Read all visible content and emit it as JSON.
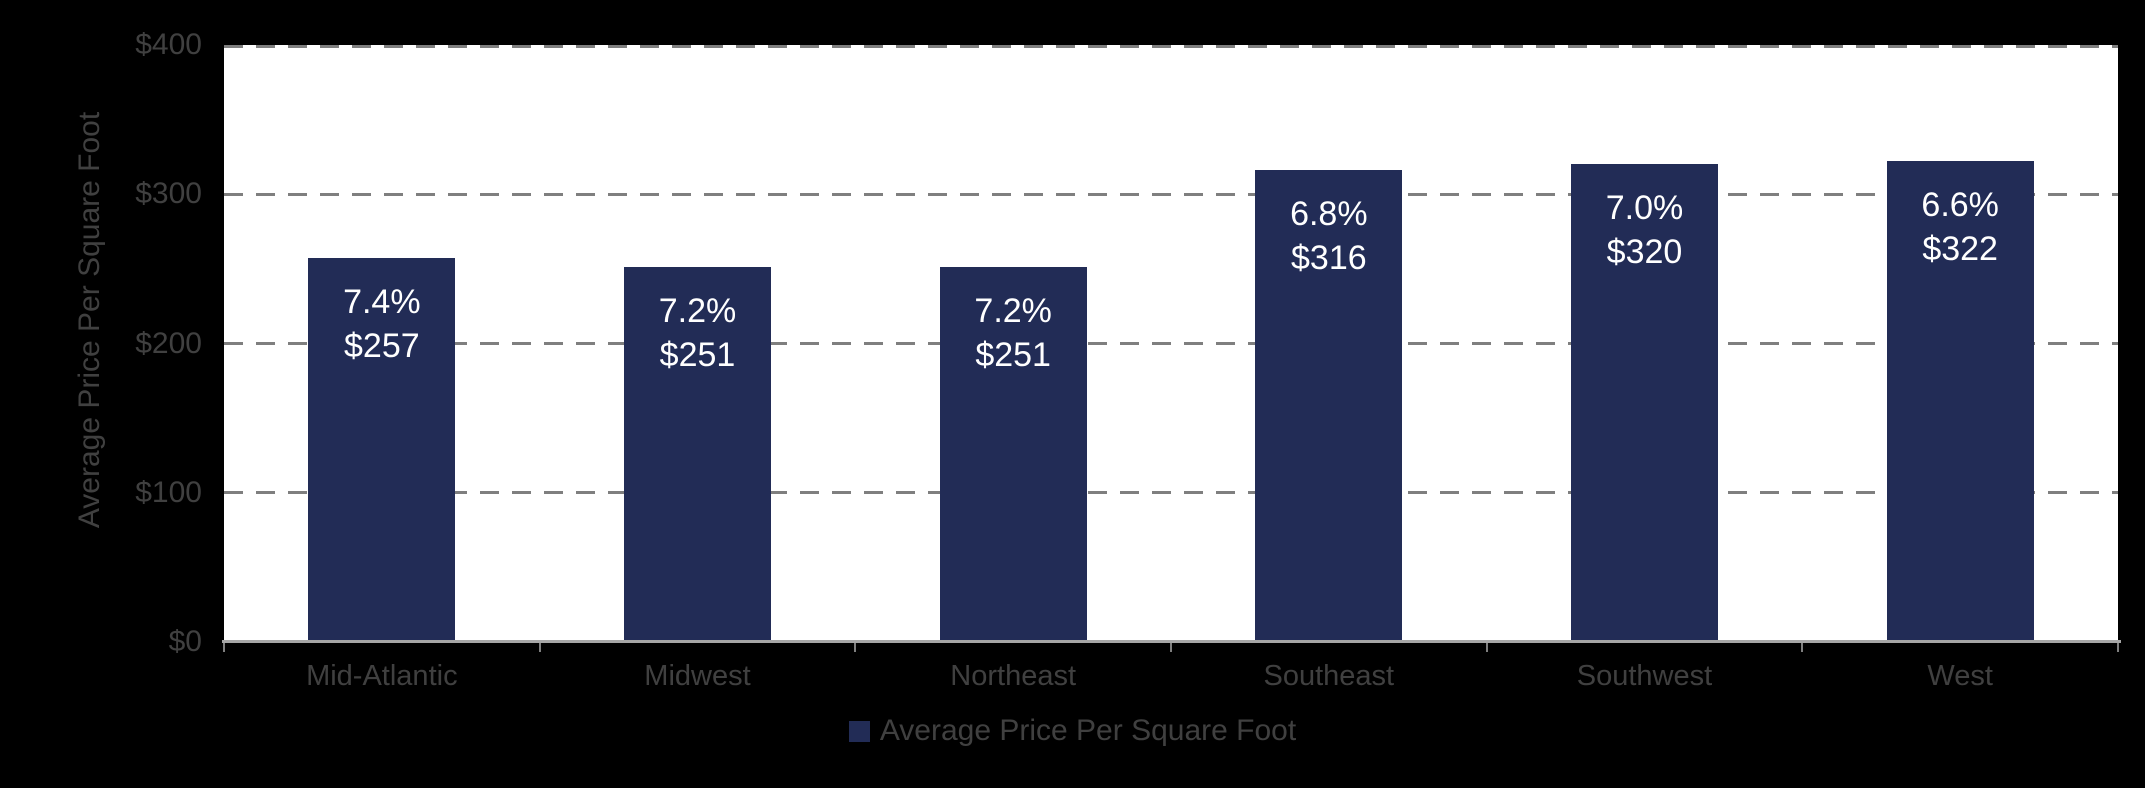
{
  "chart_data": {
    "type": "bar",
    "title": "",
    "categories": [
      "Mid-Atlantic",
      "Midwest",
      "Northeast",
      "Southeast",
      "Southwest",
      "West"
    ],
    "series": [
      {
        "name": "Average Price Per Square Foot",
        "values": [
          257,
          251,
          251,
          316,
          320,
          322
        ]
      }
    ],
    "pct_values": [
      7.4,
      7.2,
      7.2,
      6.8,
      7.0,
      6.6
    ],
    "bar_labels": [
      [
        "7.4%",
        "$257"
      ],
      [
        "7.2%",
        "$251"
      ],
      [
        "7.2%",
        "$251"
      ],
      [
        "6.8%",
        "$316"
      ],
      [
        "7.0%",
        "$320"
      ],
      [
        "6.6%",
        "$322"
      ]
    ],
    "xlabel": "",
    "ylabel": "Average Price Per Square Foot",
    "ylim": [
      0,
      400
    ],
    "yticks": [
      0,
      100,
      200,
      300,
      400
    ],
    "ytick_labels": [
      "$0",
      "$100",
      "$200",
      "$300",
      "$400"
    ],
    "grid": "horizontal-dashed",
    "legend": {
      "label": "Average Price Per Square Foot",
      "position": "bottom-center"
    }
  },
  "colors": {
    "background": "#000000",
    "plot_background": "#FFFFFF",
    "bar_fill": "#222C56",
    "gridline": "#7F7F7F",
    "axis_line": "#A6A6A6",
    "muted_text": "#404040",
    "data_label_text": "#FFFFFF"
  }
}
